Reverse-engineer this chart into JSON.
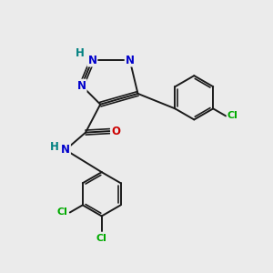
{
  "bg_color": "#ebebeb",
  "bond_color": "#1a1a1a",
  "bond_width": 1.4,
  "atom_colors": {
    "N": "#0000cc",
    "H": "#008080",
    "O": "#cc0000",
    "Cl": "#00aa00",
    "C": "#1a1a1a"
  },
  "font_size": 8.5
}
